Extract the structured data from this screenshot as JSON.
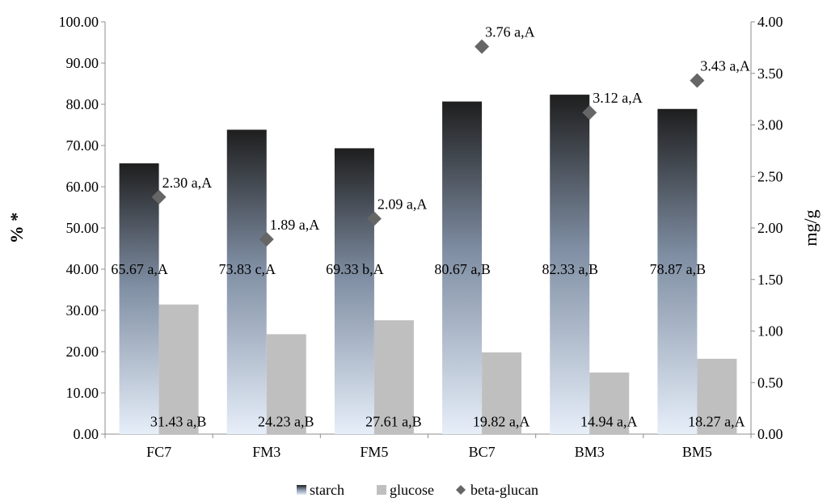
{
  "chart_data": {
    "type": "bar",
    "categories": [
      "FC7",
      "FM3",
      "FM5",
      "BC7",
      "BM3",
      "BM5"
    ],
    "series": [
      {
        "name": "starch",
        "axis": "left",
        "values": [
          65.67,
          73.83,
          69.33,
          80.67,
          82.33,
          78.87
        ],
        "labels": [
          "65.67 a,A",
          "73.83 c,A",
          "69.33 b,A",
          "80.67 a,B",
          "82.33 a,B",
          "78.87 a,B"
        ],
        "color_top": "#1e1e1e",
        "color_bottom": "#e6eef9"
      },
      {
        "name": "glucose",
        "axis": "left",
        "values": [
          31.43,
          24.23,
          27.61,
          19.82,
          14.94,
          18.27
        ],
        "labels": [
          "31.43 a,B",
          "24.23 a,B",
          "27.61 a,B",
          "19.82 a,A",
          "14.94 a,A",
          "18.27 a,A"
        ],
        "color": "#bfbfbf"
      },
      {
        "name": "beta-glucan",
        "axis": "right",
        "marker": "diamond",
        "values": [
          2.3,
          1.89,
          2.09,
          3.76,
          3.12,
          3.43
        ],
        "labels": [
          "2.30 a,A",
          "1.89 a,A",
          "2.09 a,A",
          "3.76 a,A",
          "3.12 a,A",
          "3.43 a,A"
        ],
        "color": "#666666"
      }
    ],
    "ylabel": "% *",
    "y2label": "mg/g",
    "ylim": [
      0,
      100
    ],
    "y2lim": [
      0,
      4
    ],
    "yticks": [
      "0.00",
      "10.00",
      "20.00",
      "30.00",
      "40.00",
      "50.00",
      "60.00",
      "70.00",
      "80.00",
      "90.00",
      "100.00"
    ],
    "y2ticks": [
      "0.00",
      "0.50",
      "1.00",
      "1.50",
      "2.00",
      "2.50",
      "3.00",
      "3.50",
      "4.00"
    ],
    "grid": false,
    "legend": "bottom"
  }
}
